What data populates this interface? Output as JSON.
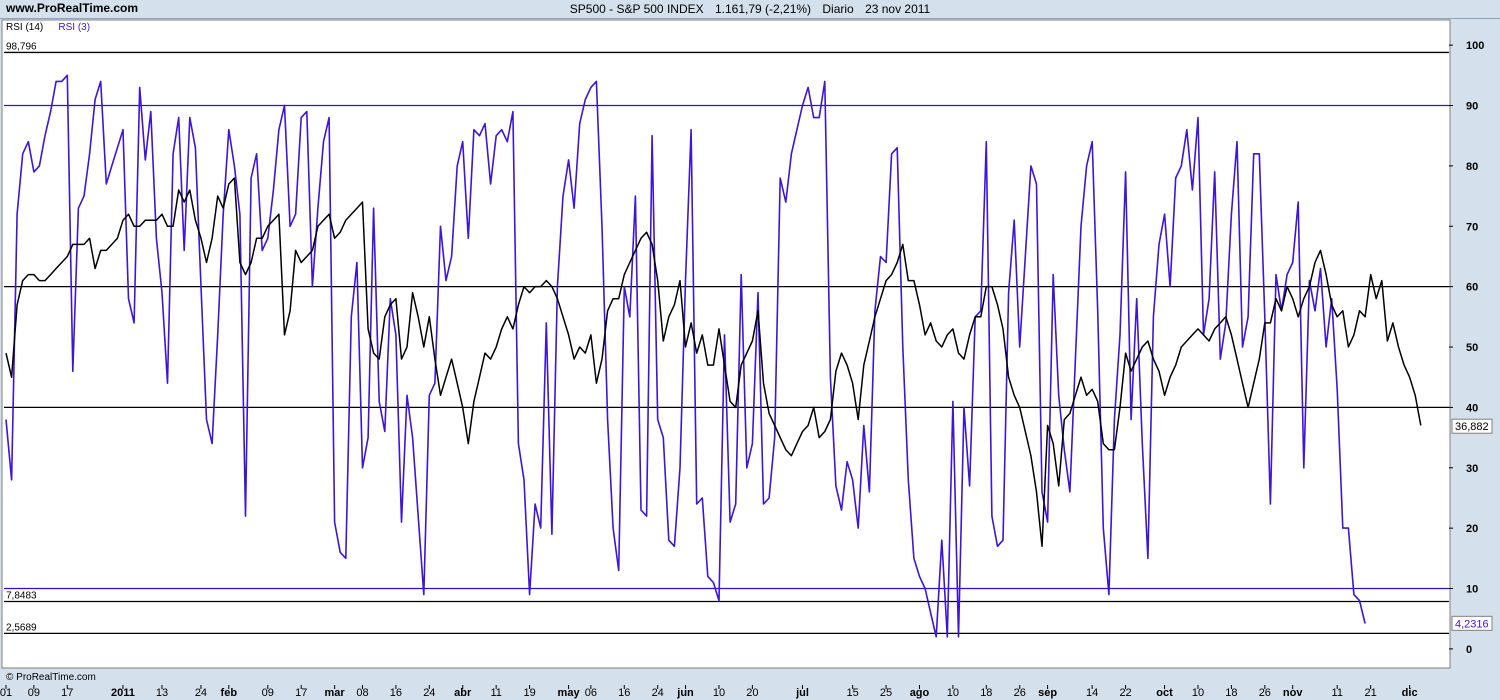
{
  "site": "www.ProRealTime.com",
  "header": {
    "symbol": "SP500 - S&P 500 INDEX",
    "price": "1.161,79 (-2,21%)",
    "period": "Diario",
    "date": "23 nov 2011"
  },
  "footer_brand": "© ProRealTime.com",
  "chart_data": {
    "type": "line",
    "legend": [
      {
        "label": "RSI (14)",
        "color": "#000000"
      },
      {
        "label": "RSI (3)",
        "color": "#3c14dc"
      }
    ],
    "ylim": [
      -3,
      104
    ],
    "yticks": [
      0,
      10,
      20,
      30,
      40,
      50,
      60,
      70,
      80,
      90,
      100
    ],
    "ytick_labels": [
      "0",
      "10",
      "20",
      "30",
      "40",
      "50",
      "60",
      "70",
      "80",
      "90",
      "100"
    ],
    "hlines": [
      {
        "value": 98.796,
        "label": "98,796",
        "color": "#000000"
      },
      {
        "value": 90,
        "color": "#2a12e0"
      },
      {
        "value": 60,
        "color": "#000000"
      },
      {
        "value": 40,
        "color": "#000000"
      },
      {
        "value": 10,
        "color": "#2a12e0"
      },
      {
        "value": 7.8483,
        "label": "7,8483",
        "color": "#000000"
      },
      {
        "value": 2.5689,
        "label": "2,5689",
        "color": "#000000"
      }
    ],
    "last_values": [
      {
        "value": 36.882,
        "label": "36,882",
        "color": "#000000"
      },
      {
        "value": 4.2316,
        "label": "4,2316",
        "color": "#3c14dc"
      }
    ],
    "xticks": [
      {
        "label": "01",
        "i": 0
      },
      {
        "label": "09",
        "i": 5
      },
      {
        "label": "17",
        "i": 11
      },
      {
        "label": "2011",
        "i": 21,
        "bold": true
      },
      {
        "label": "13",
        "i": 28
      },
      {
        "label": "24",
        "i": 35
      },
      {
        "label": "feb",
        "i": 40,
        "bold": true
      },
      {
        "label": "09",
        "i": 47
      },
      {
        "label": "17",
        "i": 53
      },
      {
        "label": "mar",
        "i": 59,
        "bold": true
      },
      {
        "label": "08",
        "i": 64
      },
      {
        "label": "16",
        "i": 70
      },
      {
        "label": "24",
        "i": 76
      },
      {
        "label": "abr",
        "i": 82,
        "bold": true
      },
      {
        "label": "11",
        "i": 88
      },
      {
        "label": "19",
        "i": 94
      },
      {
        "label": "may",
        "i": 101,
        "bold": true
      },
      {
        "label": "06",
        "i": 105
      },
      {
        "label": "16",
        "i": 111
      },
      {
        "label": "24",
        "i": 117
      },
      {
        "label": "jun",
        "i": 122,
        "bold": true
      },
      {
        "label": "10",
        "i": 128
      },
      {
        "label": "20",
        "i": 134
      },
      {
        "label": "jul",
        "i": 143,
        "bold": true
      },
      {
        "label": "15",
        "i": 152
      },
      {
        "label": "25",
        "i": 158
      },
      {
        "label": "ago",
        "i": 164,
        "bold": true
      },
      {
        "label": "10",
        "i": 170
      },
      {
        "label": "18",
        "i": 176
      },
      {
        "label": "26",
        "i": 182
      },
      {
        "label": "sep",
        "i": 187,
        "bold": true
      },
      {
        "label": "14",
        "i": 195
      },
      {
        "label": "22",
        "i": 201
      },
      {
        "label": "oct",
        "i": 208,
        "bold": true
      },
      {
        "label": "10",
        "i": 214
      },
      {
        "label": "18",
        "i": 220
      },
      {
        "label": "26",
        "i": 226
      },
      {
        "label": "nov",
        "i": 231,
        "bold": true
      },
      {
        "label": "11",
        "i": 239
      },
      {
        "label": "21",
        "i": 245
      },
      {
        "label": "dic",
        "i": 252,
        "bold": true
      }
    ],
    "series": [
      {
        "name": "RSI (14)",
        "color": "#000000",
        "values": [
          49,
          45,
          57,
          61,
          62,
          62,
          61,
          61,
          62,
          63,
          64,
          65,
          67,
          67,
          67,
          68,
          63,
          66,
          66,
          67,
          68,
          71,
          72,
          70,
          70,
          71,
          71,
          71,
          72,
          70,
          70,
          76,
          74,
          76,
          71,
          68,
          64,
          68,
          75,
          73,
          77,
          78,
          64,
          62,
          64,
          68,
          68,
          70,
          71,
          72,
          52,
          56,
          66,
          64,
          65,
          66,
          70,
          71,
          72,
          68,
          69,
          71,
          72,
          73,
          74,
          53,
          49,
          48,
          55,
          57,
          58,
          48,
          50,
          59,
          55,
          50,
          55,
          48,
          42,
          45,
          48,
          44,
          40,
          34,
          41,
          45,
          49,
          48,
          50,
          53,
          55,
          53,
          57,
          60,
          59,
          60,
          60,
          61,
          60,
          58,
          55,
          52,
          48,
          50,
          49,
          52,
          44,
          48,
          56,
          58,
          58,
          62,
          64,
          66,
          68,
          69,
          67,
          61,
          51,
          55,
          57,
          61,
          50,
          54,
          49,
          52,
          47,
          47,
          53,
          47,
          41,
          40,
          47,
          49,
          51,
          56,
          44,
          39,
          37,
          35,
          33,
          32,
          34,
          36,
          37,
          40,
          35,
          36,
          38,
          46,
          49,
          47,
          44,
          38,
          47,
          51,
          55,
          58,
          61,
          62,
          64,
          67,
          61,
          61,
          57,
          52,
          54,
          51,
          50,
          52,
          53,
          49,
          48,
          52,
          55,
          55,
          60,
          60,
          57,
          53,
          45,
          42,
          40,
          36,
          32,
          26,
          17,
          37,
          34,
          27,
          38,
          39,
          42,
          45,
          42,
          43,
          41,
          34,
          33,
          33,
          40,
          49,
          46,
          48,
          50,
          51,
          48,
          46,
          42,
          45,
          47,
          50,
          51,
          52,
          53,
          52,
          51,
          53,
          54,
          55,
          52,
          48,
          44,
          40,
          44,
          48,
          54,
          54,
          58,
          56,
          60,
          58,
          55,
          58,
          60,
          64,
          66,
          62,
          57,
          55,
          56,
          50,
          52,
          56,
          55,
          62,
          58,
          61,
          51,
          54,
          50,
          47,
          45,
          42,
          37
        ]
      },
      {
        "name": "RSI (3)",
        "color": "#3c14dc",
        "values": [
          38,
          28,
          72,
          82,
          84,
          79,
          80,
          85,
          89,
          94,
          94,
          95,
          46,
          73,
          75,
          82,
          91,
          94,
          77,
          80,
          83,
          86,
          58,
          54,
          93,
          81,
          89,
          68,
          59,
          44,
          82,
          88,
          66,
          88,
          83,
          60,
          38,
          34,
          52,
          72,
          86,
          80,
          72,
          22,
          78,
          82,
          66,
          68,
          76,
          86,
          90,
          70,
          72,
          88,
          89,
          60,
          73,
          84,
          88,
          21,
          16,
          15,
          55,
          64,
          30,
          35,
          73,
          41,
          36,
          58,
          52,
          21,
          42,
          35,
          22,
          9,
          42,
          44,
          70,
          61,
          65,
          80,
          84,
          68,
          86,
          85,
          87,
          77,
          85,
          86,
          84,
          89,
          34,
          28,
          9,
          24,
          20,
          54,
          19,
          60,
          75,
          81,
          73,
          87,
          91,
          93,
          94,
          70,
          38,
          20,
          13,
          60,
          55,
          75,
          23,
          22,
          85,
          38,
          35,
          18,
          17,
          30,
          61,
          86,
          24,
          25,
          12,
          11,
          8,
          52,
          21,
          24,
          62,
          30,
          34,
          59,
          24,
          25,
          35,
          78,
          74,
          82,
          86,
          90,
          93,
          88,
          88,
          94,
          45,
          27,
          23,
          31,
          28,
          20,
          37,
          26,
          56,
          65,
          64,
          82,
          83,
          50,
          28,
          15,
          12,
          10,
          6,
          2,
          18,
          2,
          41,
          2,
          40,
          27,
          55,
          56,
          84,
          22,
          17,
          18,
          59,
          71,
          50,
          65,
          80,
          77,
          26,
          21,
          62,
          42,
          33,
          26,
          48,
          70,
          80,
          84,
          56,
          20,
          9,
          38,
          52,
          79,
          38,
          58,
          34,
          15,
          55,
          67,
          72,
          60,
          78,
          80,
          86,
          76,
          88,
          52,
          58,
          79,
          48,
          54,
          72,
          84,
          50,
          55,
          82,
          82,
          55,
          24,
          62,
          56,
          62,
          64,
          74,
          30,
          61,
          56,
          63,
          50,
          58,
          43,
          20,
          20,
          9,
          8,
          4.2
        ]
      }
    ]
  }
}
